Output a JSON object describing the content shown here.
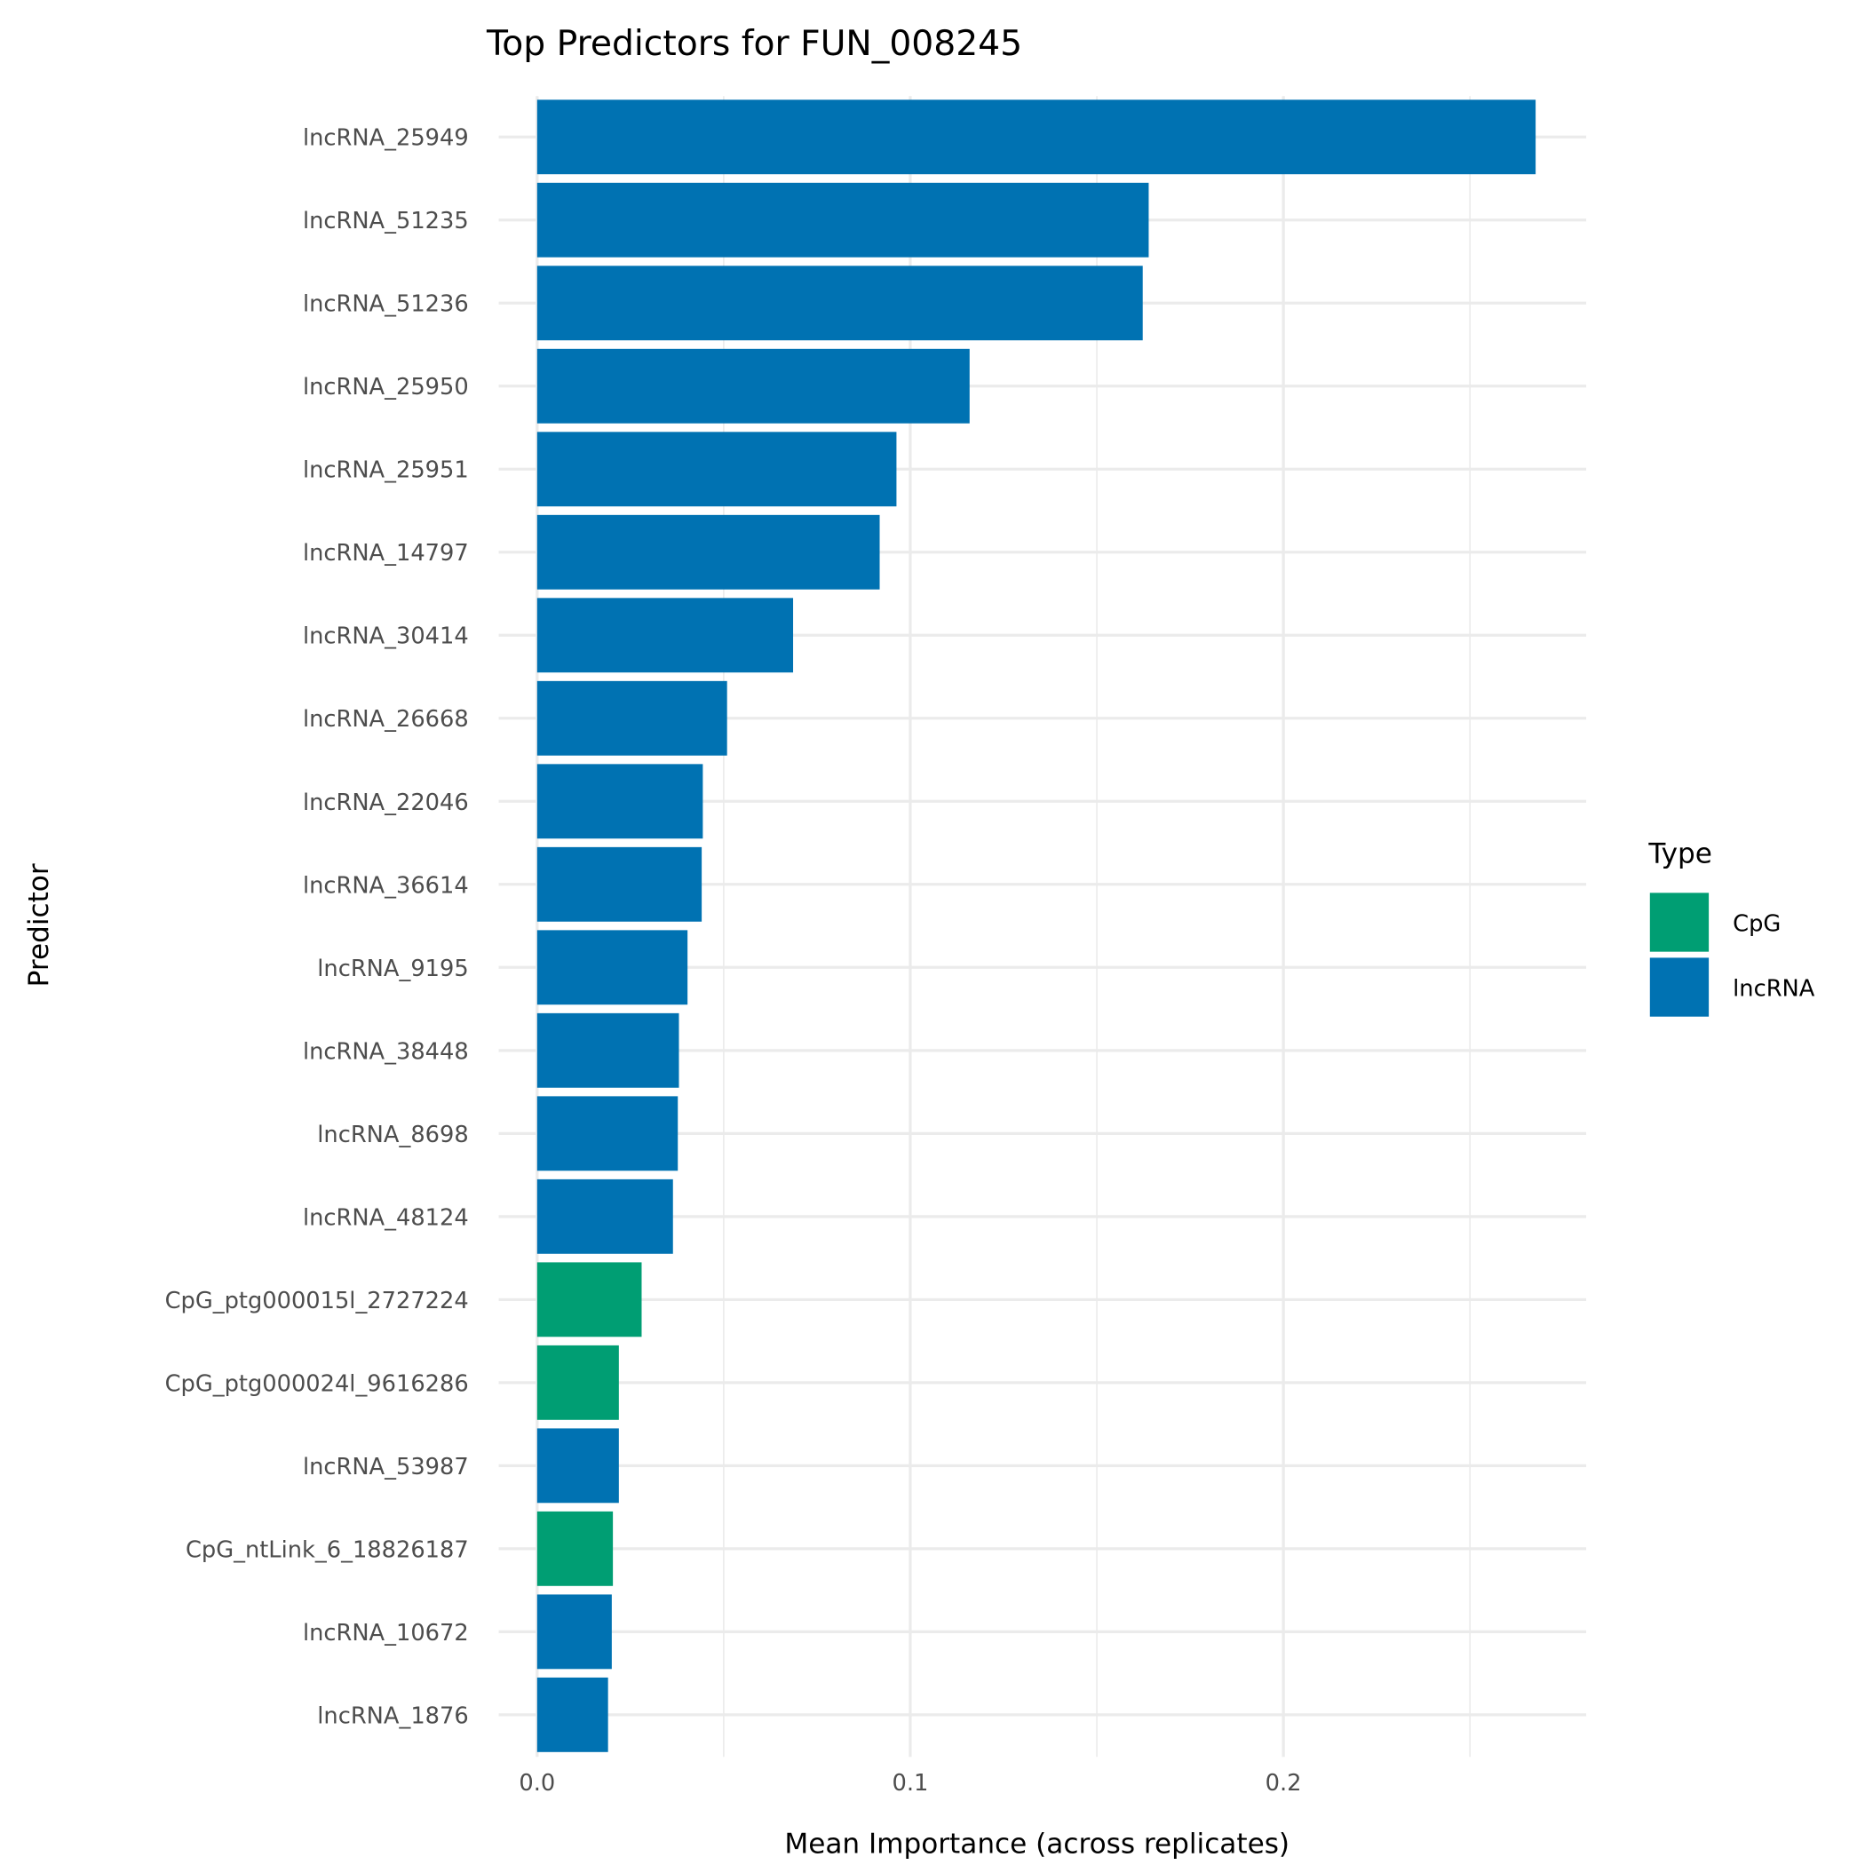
{
  "chart_data": {
    "type": "bar",
    "orientation": "horizontal",
    "title": "Top Predictors for FUN_008245",
    "xlabel": "Mean Importance (across replicates)",
    "ylabel": "Predictor",
    "xlim": [
      0,
      0.28
    ],
    "xticks": [
      0.0,
      0.1,
      0.2
    ],
    "xtick_labels": [
      "0.0",
      "0.1",
      "0.2"
    ],
    "grid": true,
    "legend": {
      "title": "Type",
      "position": "right",
      "entries": [
        {
          "label": "CpG",
          "color": "#009E73"
        },
        {
          "label": "lncRNA",
          "color": "#0072B2"
        }
      ]
    },
    "categories": [
      "lncRNA_25949",
      "lncRNA_51235",
      "lncRNA_51236",
      "lncRNA_25950",
      "lncRNA_25951",
      "lncRNA_14797",
      "lncRNA_30414",
      "lncRNA_26668",
      "lncRNA_22046",
      "lncRNA_36614",
      "lncRNA_9195",
      "lncRNA_38448",
      "lncRNA_8698",
      "lncRNA_48124",
      "CpG_ptg000015l_2727224",
      "CpG_ptg000024l_9616286",
      "lncRNA_53987",
      "CpG_ntLink_6_18826187",
      "lncRNA_10672",
      "lncRNA_1876"
    ],
    "values": [
      0.2676,
      0.1639,
      0.1623,
      0.1159,
      0.0963,
      0.0918,
      0.0686,
      0.0509,
      0.0444,
      0.0441,
      0.0403,
      0.038,
      0.0377,
      0.0364,
      0.028,
      0.0219,
      0.0219,
      0.0203,
      0.02,
      0.019
    ],
    "types": [
      "lncRNA",
      "lncRNA",
      "lncRNA",
      "lncRNA",
      "lncRNA",
      "lncRNA",
      "lncRNA",
      "lncRNA",
      "lncRNA",
      "lncRNA",
      "lncRNA",
      "lncRNA",
      "lncRNA",
      "lncRNA",
      "CpG",
      "CpG",
      "lncRNA",
      "CpG",
      "lncRNA",
      "lncRNA"
    ]
  }
}
